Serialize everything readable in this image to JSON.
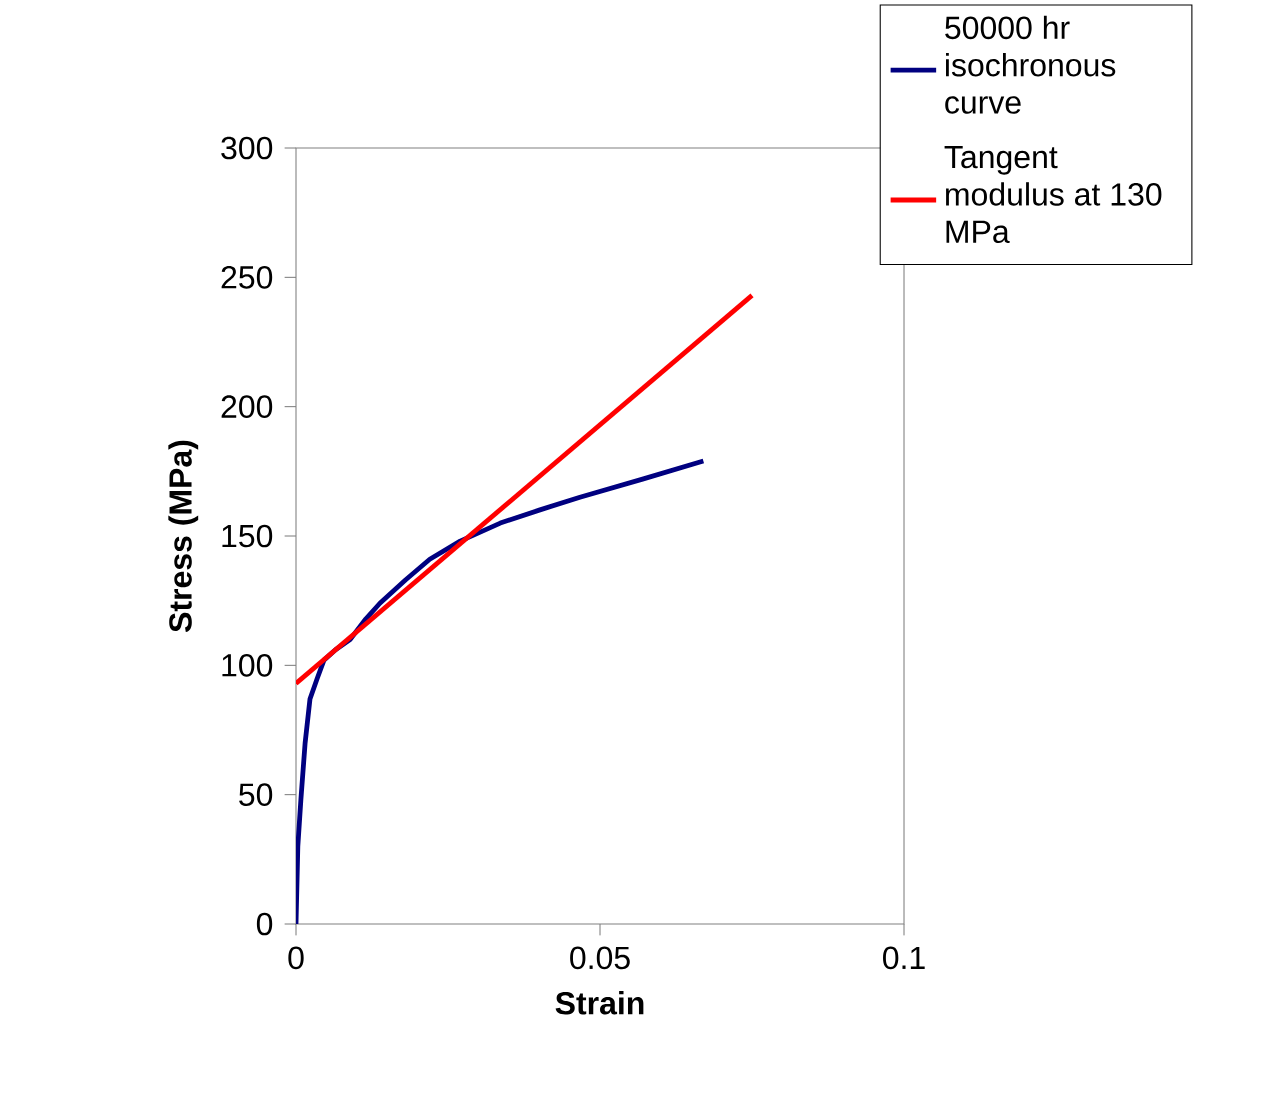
{
  "chart_data": {
    "type": "line",
    "xlabel": "Strain",
    "ylabel": "Stress (MPa)",
    "xlim": [
      0,
      0.1
    ],
    "ylim": [
      0,
      300
    ],
    "xticks": [
      0,
      0.05,
      0.1
    ],
    "yticks": [
      0,
      50,
      100,
      150,
      200,
      250,
      300
    ],
    "grid": false,
    "legend": "top right",
    "marker": "none",
    "line_style": "solid",
    "series": [
      {
        "name": "50000 hr isochronous curve",
        "color": "#000080",
        "x": [
          0,
          0.0003,
          0.0008,
          0.0015,
          0.0023,
          0.0035,
          0.0046,
          0.0065,
          0.0089,
          0.0115,
          0.0138,
          0.018,
          0.022,
          0.027,
          0.0336,
          0.04,
          0.0467,
          0.057,
          0.067
        ],
        "values": [
          0,
          30,
          48,
          70,
          87,
          95,
          102,
          106,
          110,
          118,
          124,
          133,
          141,
          148,
          155,
          160,
          165,
          172,
          179
        ]
      },
      {
        "name": "Tangent modulus at 130 MPa",
        "color": "#ff0000",
        "x": [
          0,
          0.075
        ],
        "values": [
          93,
          243
        ]
      }
    ]
  }
}
